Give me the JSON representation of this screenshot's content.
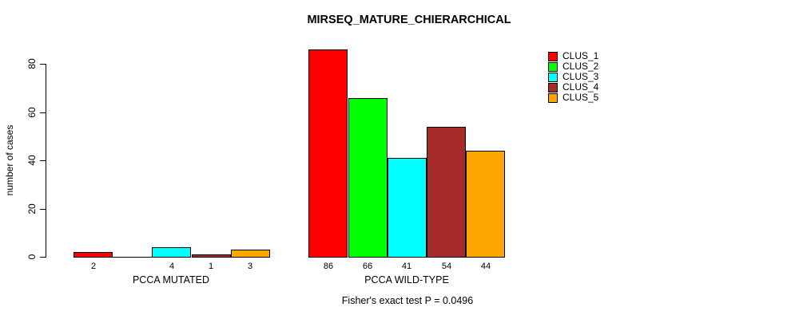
{
  "chart_data": {
    "type": "bar",
    "title": "MIRSEQ_MATURE_CHIERARCHICAL",
    "subtitle": "Fisher's exact test P = 0.0496",
    "xlabel": "",
    "ylabel": "number of cases",
    "ylim": [
      0,
      86
    ],
    "yticks": [
      0,
      20,
      40,
      60,
      80
    ],
    "grid": false,
    "legend_position": "top-right",
    "bar_value_labels_shown": true,
    "categories": [
      "PCCA MUTATED",
      "PCCA WILD-TYPE"
    ],
    "series": [
      {
        "name": "CLUS_1",
        "color": "#FF0000",
        "values": [
          2,
          86
        ]
      },
      {
        "name": "CLUS_2",
        "color": "#00FF00",
        "values": [
          0,
          66
        ]
      },
      {
        "name": "CLUS_3",
        "color": "#00FFFF",
        "values": [
          4,
          41
        ]
      },
      {
        "name": "CLUS_4",
        "color": "#A52A2A",
        "values": [
          1,
          54
        ]
      },
      {
        "name": "CLUS_5",
        "color": "#FFA500",
        "values": [
          3,
          44
        ]
      }
    ]
  }
}
